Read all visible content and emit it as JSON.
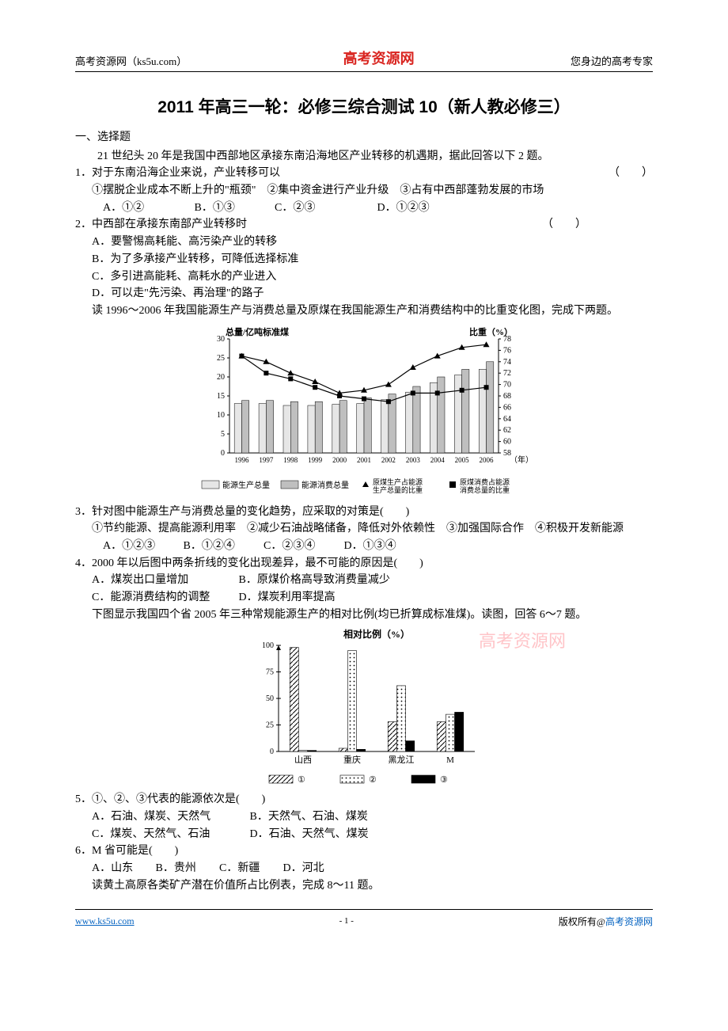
{
  "header": {
    "left": "高考资源网（ks5u.com）",
    "center": "高考资源网",
    "right": "您身边的高考专家"
  },
  "title": "2011 年高三一轮：必修三综合测试 10（新人教必修三）",
  "section1": "一、选择题",
  "intro_para": "21 世纪头 20 年是我国中西部地区承接东南沿海地区产业转移的机遇期，据此回答以下 2 题。",
  "q1": {
    "stem": "1．对于东南沿海企业来说，产业转移可以",
    "paren": "（　　）",
    "line2": "①摆脱企业成本不断上升的\"瓶颈\"　②集中资金进行产业升级　③占有中西部蓬勃发展的市场",
    "opts": {
      "a": "A．①②",
      "b": "B．①③",
      "c": "C．②③",
      "d": "D．①②③"
    }
  },
  "q2": {
    "stem": "2．中西部在承接东南部产业转移时",
    "paren": "（　　）",
    "a": "A．要警惕高耗能、高污染产业的转移",
    "b": "B．为了多承接产业转移，可降低选择标准",
    "c": "C．多引进高能耗、高耗水的产业进入",
    "d": "D．可以走\"先污染、再治理\"的路子",
    "post": "读 1996～2006 年我国能源生产与消费总量及原煤在我国能源生产和消费结构中的比重变化图，完成下两题。"
  },
  "chart_a": {
    "left_axis": "总量/亿吨标准煤",
    "right_axis": "比重（%）",
    "years": [
      "1996",
      "1997",
      "1998",
      "1999",
      "2000",
      "2001",
      "2002",
      "2003",
      "2004",
      "2005",
      "2006"
    ],
    "left_ticks": [
      0,
      5,
      10,
      15,
      20,
      25,
      30
    ],
    "right_ticks": [
      58,
      60,
      62,
      64,
      66,
      68,
      70,
      72,
      74,
      76,
      78
    ],
    "left_range": [
      0,
      30
    ],
    "right_range": [
      58,
      78
    ],
    "bar1": [
      13,
      13,
      12.5,
      12.5,
      12.8,
      13,
      14,
      16,
      18.5,
      20.5,
      22
    ],
    "bar2": [
      13.8,
      13.8,
      13.5,
      13.5,
      13.8,
      14.5,
      15.5,
      17.5,
      20,
      22,
      24
    ],
    "line1": [
      75,
      74,
      72,
      70.5,
      68.5,
      69,
      70,
      73,
      75,
      76.5,
      77
    ],
    "line2": [
      75,
      72,
      71,
      69.5,
      68,
      67.5,
      67,
      68.5,
      68.5,
      69,
      69.5
    ],
    "bar1_fill": "#e6e6e6",
    "bar2_fill": "#bfbfbf",
    "stroke": "#000000",
    "x_label": "（年）",
    "legend": {
      "b1": "能源生产总量",
      "b2": "能源消费总量",
      "l1a": "原煤生产占能源",
      "l1b": "生产总量的比重",
      "l2a": "原煤消费占能源",
      "l2b": "消费总量的比重"
    }
  },
  "q3": {
    "stem": "3．针对图中能源生产与消费总量的变化趋势，应采取的对策是(　　)",
    "line2": "①节约能源、提高能源利用率　②减少石油战略储备，降低对外依赖性　③加强国际合作　④积极开发新能源",
    "opts": {
      "a": "A．①②③",
      "b": "B．①②④",
      "c": "C．②③④",
      "d": "D．①③④"
    }
  },
  "q4": {
    "stem": "4．2000 年以后图中两条折线的变化出现差异，最不可能的原因是(　　)",
    "a": "A．煤炭出口量增加",
    "b": "B．原煤价格高导致消费量减少",
    "c": "C．能源消费结构的调整",
    "d": "D．煤炭利用率提高",
    "post": "下图显示我国四个省 2005 年三种常规能源生产的相对比例(均已折算成标准煤)。读图，回答 6～7 题。"
  },
  "chart_b": {
    "title": "相对比例（%）",
    "categories": [
      "山西",
      "重庆",
      "黑龙江",
      "M"
    ],
    "ticks": [
      0,
      25,
      50,
      75,
      100
    ],
    "range": [
      0,
      100
    ],
    "series": {
      "s1": [
        98,
        3,
        28,
        28
      ],
      "s2": [
        1,
        95,
        62,
        35
      ],
      "s3": [
        1,
        2,
        10,
        37
      ]
    },
    "fill1": "hatch",
    "fill2": "dots",
    "fill3": "#000000",
    "legend": {
      "l1": "①",
      "l2": "②",
      "l3": "③"
    }
  },
  "watermark": "高考资源网",
  "q5": {
    "stem": "5．①、②、③代表的能源依次是(　　)",
    "a": "A．石油、煤炭、天然气",
    "b": "B．天然气、石油、煤炭",
    "c": "C．煤炭、天然气、石油",
    "d": "D．石油、天然气、煤炭"
  },
  "q6": {
    "stem": "6．M 省可能是(　　)",
    "opts": {
      "a": "A．山东",
      "b": "B．贵州",
      "c": "C．新疆",
      "d": "D．河北"
    },
    "post": "读黄土高原各类矿产潜在价值所占比例表，完成 8～11 题。"
  },
  "footer": {
    "left": "www.ks5u.com",
    "center": "- 1 -",
    "right_black": "版权所有@",
    "right_blue": "高考资源网"
  }
}
